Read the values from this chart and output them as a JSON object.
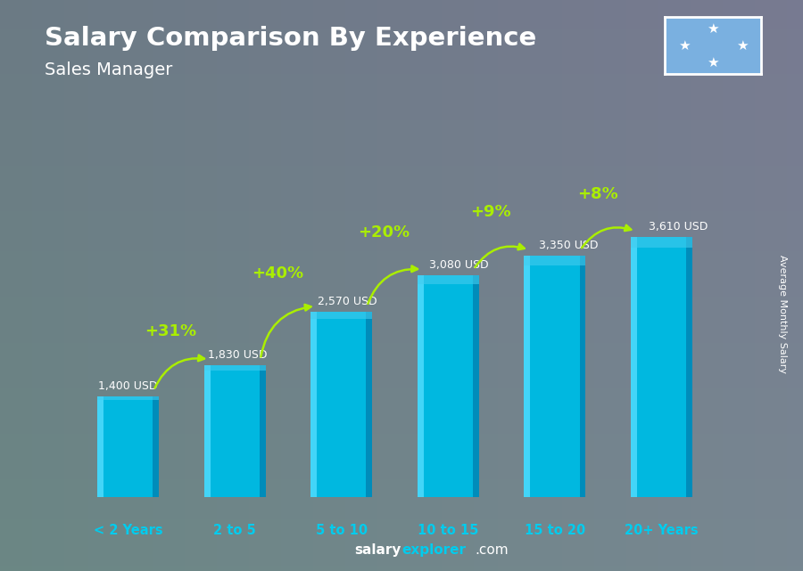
{
  "title": "Salary Comparison By Experience",
  "subtitle": "Sales Manager",
  "categories": [
    "< 2 Years",
    "2 to 5",
    "5 to 10",
    "10 to 15",
    "15 to 20",
    "20+ Years"
  ],
  "values": [
    1400,
    1830,
    2570,
    3080,
    3350,
    3610
  ],
  "value_labels": [
    "1,400 USD",
    "1,830 USD",
    "2,570 USD",
    "3,080 USD",
    "3,350 USD",
    "3,610 USD"
  ],
  "pct_changes": [
    null,
    "+31%",
    "+40%",
    "+20%",
    "+9%",
    "+8%"
  ],
  "bar_main_color": "#00b8e0",
  "bar_left_color": "#55ddff",
  "bar_right_color": "#007aaa",
  "bar_top_color": "#44ccee",
  "background_color": "#4a5a6a",
  "title_color": "#ffffff",
  "subtitle_color": "#ffffff",
  "label_color": "#ffffff",
  "pct_color": "#aaee00",
  "cat_color": "#00ccee",
  "ylabel_text": "Average Monthly Salary",
  "footer_salary_color": "#ffffff",
  "footer_explorer_color": "#00ccee",
  "footer_com_color": "#ffffff",
  "ylim": [
    0,
    4600
  ],
  "bar_width": 0.58,
  "flag_bg": "#7ab0e0",
  "flag_star_color": "#ffffff",
  "figsize": [
    9.0,
    6.41
  ],
  "dpi": 100
}
